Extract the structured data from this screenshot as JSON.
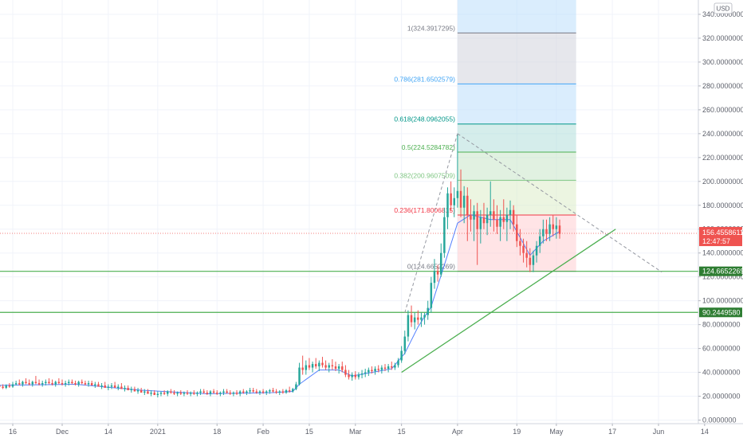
{
  "colors": {
    "up": "#26a69a",
    "down": "#ef5350",
    "grid": "#f0f3fa",
    "axis_text": "#5d606b",
    "ma_line": "#2962ff",
    "support_line": "#4caf50",
    "price_tag": "#ef5350",
    "level_tag": "#2e7d32"
  },
  "currency_badge": "USD",
  "price_tag": {
    "value": "156.4558611",
    "timer": "12:47:57"
  },
  "chart_data": {
    "type": "candlestick",
    "title": "",
    "xlabel": "",
    "ylabel": "",
    "ylim": [
      -3,
      352
    ],
    "y_ticks": [
      "0.0000000",
      "20.0000000",
      "40.0000000",
      "60.0000000",
      "80.0000000",
      "100.0000000",
      "120.0000000",
      "140.0000000",
      "160.0000000",
      "180.0000000",
      "200.0000000",
      "220.0000000",
      "240.0000000",
      "260.0000000",
      "280.0000000",
      "300.0000000",
      "320.0000000",
      "340.0000000"
    ],
    "x_ticks": [
      "16",
      "Dec",
      "14",
      "2021",
      "18",
      "Feb",
      "15",
      "Mar",
      "15",
      "Apr",
      "19",
      "May",
      "17",
      "Jun",
      "14"
    ],
    "x_tick_days": [
      -59,
      -44,
      -30,
      -15,
      3,
      17,
      31,
      45,
      59,
      76,
      94,
      106,
      123,
      137,
      151
    ],
    "fib_levels": [
      {
        "label": "1(324.3917295)",
        "value": 324.39,
        "color": "#787b86",
        "fill": "#d1d4dc"
      },
      {
        "label": "0.786(281.6502579)",
        "value": 281.65,
        "color": "#42a5f5",
        "fill": "#bbdefb"
      },
      {
        "label": "0.618(248.0962055)",
        "value": 248.1,
        "color": "#009688",
        "fill": "#b2dfdb"
      },
      {
        "label": "0.5(224.5284782)",
        "value": 224.53,
        "color": "#4caf50",
        "fill": "#c8e6c9"
      },
      {
        "label": "0.382(200.9607509)",
        "value": 200.96,
        "color": "#81c784",
        "fill": "#dcedc8"
      },
      {
        "label": "0.236(171.8006815)",
        "value": 171.8,
        "color": "#f23645",
        "fill": "#ffcdd2"
      },
      {
        "label": "0(124.6652269)",
        "value": 124.67,
        "color": "#787b86",
        "fill": ""
      }
    ],
    "fib_top_fill": {
      "to": 352,
      "fill": "#bbdefb"
    },
    "horizontal_levels": [
      {
        "label": "124.6652269",
        "value": 124.67
      },
      {
        "label": "90.2449580",
        "value": 90.24
      }
    ],
    "trendlines": [
      {
        "style": "solid",
        "x": [
          59,
          124
        ],
        "y": [
          40,
          160
        ]
      },
      {
        "style": "dashed",
        "x": [
          76,
          138
        ],
        "y": [
          240,
          124
        ]
      },
      {
        "style": "dashed",
        "x": [
          60,
          76
        ],
        "y": [
          90,
          240
        ]
      }
    ],
    "last_price": 156.46,
    "candles": {
      "fields": [
        "day",
        "open",
        "high",
        "low",
        "close"
      ],
      "rows": [
        [
          -65,
          31,
          33,
          29,
          30
        ],
        [
          -64,
          30,
          32,
          28,
          29
        ],
        [
          -63,
          29,
          31,
          27,
          28
        ],
        [
          -62,
          28,
          30,
          26,
          27
        ],
        [
          -61,
          27,
          30,
          26,
          29
        ],
        [
          -60,
          29,
          31,
          27,
          28
        ],
        [
          -59,
          28,
          32,
          27,
          30
        ],
        [
          -58,
          30,
          33,
          29,
          31
        ],
        [
          -57,
          31,
          34,
          29,
          30
        ],
        [
          -56,
          30,
          33,
          28,
          32
        ],
        [
          -55,
          32,
          35,
          30,
          31
        ],
        [
          -54,
          31,
          34,
          29,
          30
        ],
        [
          -53,
          30,
          33,
          28,
          32
        ],
        [
          -52,
          32,
          37,
          30,
          31
        ],
        [
          -51,
          31,
          34,
          29,
          30
        ],
        [
          -50,
          30,
          33,
          28,
          31
        ],
        [
          -49,
          31,
          34,
          29,
          32
        ],
        [
          -48,
          32,
          35,
          30,
          31
        ],
        [
          -47,
          31,
          34,
          29,
          30
        ],
        [
          -46,
          30,
          33,
          28,
          32
        ],
        [
          -45,
          32,
          35,
          30,
          31
        ],
        [
          -44,
          31,
          34,
          29,
          30
        ],
        [
          -43,
          30,
          33,
          28,
          31
        ],
        [
          -42,
          31,
          34,
          29,
          32
        ],
        [
          -41,
          32,
          34,
          30,
          31
        ],
        [
          -40,
          31,
          33,
          29,
          30
        ],
        [
          -39,
          30,
          33,
          28,
          32
        ],
        [
          -38,
          32,
          34,
          30,
          31
        ],
        [
          -37,
          31,
          33,
          29,
          30
        ],
        [
          -36,
          30,
          33,
          28,
          31
        ],
        [
          -35,
          31,
          33,
          29,
          29
        ],
        [
          -34,
          29,
          32,
          27,
          30
        ],
        [
          -33,
          30,
          32,
          28,
          28
        ],
        [
          -32,
          28,
          31,
          26,
          29
        ],
        [
          -31,
          29,
          32,
          27,
          27
        ],
        [
          -30,
          27,
          30,
          25,
          28
        ],
        [
          -29,
          28,
          31,
          26,
          29
        ],
        [
          -28,
          29,
          32,
          27,
          27
        ],
        [
          -27,
          27,
          30,
          25,
          28
        ],
        [
          -26,
          28,
          31,
          26,
          26
        ],
        [
          -25,
          26,
          29,
          24,
          27
        ],
        [
          -24,
          27,
          29,
          25,
          25
        ],
        [
          -23,
          25,
          28,
          23,
          26
        ],
        [
          -22,
          26,
          28,
          24,
          24
        ],
        [
          -21,
          24,
          27,
          22,
          25
        ],
        [
          -20,
          25,
          27,
          23,
          23
        ],
        [
          -19,
          23,
          26,
          21,
          24
        ],
        [
          -18,
          24,
          26,
          22,
          22
        ],
        [
          -17,
          22,
          25,
          20,
          23
        ],
        [
          -16,
          23,
          25,
          21,
          21
        ],
        [
          -15,
          21,
          24,
          19,
          22
        ],
        [
          -14,
          22,
          24,
          20,
          23
        ],
        [
          -13,
          23,
          25,
          21,
          22
        ],
        [
          -12,
          22,
          25,
          20,
          24
        ],
        [
          -11,
          24,
          26,
          22,
          23
        ],
        [
          -10,
          23,
          25,
          21,
          22
        ],
        [
          -9,
          22,
          24,
          20,
          23
        ],
        [
          -8,
          23,
          25,
          21,
          22
        ],
        [
          -7,
          22,
          24,
          20,
          23
        ],
        [
          -6,
          23,
          25,
          21,
          22
        ],
        [
          -5,
          22,
          24,
          20,
          23
        ],
        [
          -4,
          23,
          25,
          21,
          22
        ],
        [
          -3,
          22,
          24,
          20,
          23
        ],
        [
          -2,
          23,
          26,
          21,
          24
        ],
        [
          -1,
          24,
          26,
          22,
          23
        ],
        [
          0,
          23,
          25,
          21,
          22
        ],
        [
          1,
          22,
          25,
          20,
          24
        ],
        [
          2,
          24,
          26,
          22,
          23
        ],
        [
          3,
          23,
          25,
          21,
          22
        ],
        [
          4,
          22,
          24,
          20,
          23
        ],
        [
          5,
          23,
          26,
          21,
          24
        ],
        [
          6,
          24,
          26,
          22,
          23
        ],
        [
          7,
          23,
          25,
          21,
          22
        ],
        [
          8,
          22,
          24,
          20,
          23
        ],
        [
          9,
          23,
          25,
          21,
          22
        ],
        [
          10,
          22,
          25,
          20,
          24
        ],
        [
          11,
          24,
          26,
          22,
          23
        ],
        [
          12,
          23,
          25,
          21,
          24
        ],
        [
          13,
          24,
          27,
          22,
          25
        ],
        [
          14,
          25,
          27,
          23,
          24
        ],
        [
          15,
          24,
          26,
          22,
          23
        ],
        [
          16,
          23,
          25,
          21,
          24
        ],
        [
          17,
          24,
          26,
          22,
          23
        ],
        [
          18,
          23,
          25,
          21,
          24
        ],
        [
          19,
          24,
          26,
          22,
          25
        ],
        [
          20,
          25,
          27,
          23,
          24
        ],
        [
          21,
          24,
          26,
          22,
          23
        ],
        [
          22,
          23,
          25,
          21,
          24
        ],
        [
          23,
          24,
          26,
          22,
          23
        ],
        [
          24,
          23,
          26,
          22,
          25
        ],
        [
          25,
          25,
          28,
          23,
          24
        ],
        [
          26,
          24,
          27,
          23,
          26
        ],
        [
          27,
          26,
          32,
          25,
          30
        ],
        [
          28,
          30,
          48,
          29,
          44
        ],
        [
          29,
          44,
          54,
          38,
          42
        ],
        [
          30,
          42,
          50,
          38,
          46
        ],
        [
          31,
          46,
          52,
          42,
          44
        ],
        [
          32,
          44,
          49,
          40,
          47
        ],
        [
          33,
          47,
          52,
          43,
          45
        ],
        [
          34,
          45,
          50,
          41,
          48
        ],
        [
          35,
          48,
          53,
          44,
          46
        ],
        [
          36,
          46,
          50,
          42,
          44
        ],
        [
          37,
          44,
          48,
          40,
          46
        ],
        [
          38,
          46,
          51,
          42,
          45
        ],
        [
          39,
          45,
          49,
          41,
          43
        ],
        [
          40,
          43,
          47,
          39,
          45
        ],
        [
          41,
          45,
          49,
          40,
          42
        ],
        [
          42,
          42,
          46,
          36,
          38
        ],
        [
          43,
          38,
          42,
          34,
          36
        ],
        [
          44,
          36,
          40,
          33,
          38
        ],
        [
          45,
          38,
          41,
          34,
          36
        ],
        [
          46,
          36,
          40,
          34,
          38
        ],
        [
          47,
          38,
          42,
          35,
          39
        ],
        [
          48,
          39,
          43,
          36,
          40
        ],
        [
          49,
          40,
          44,
          37,
          42
        ],
        [
          50,
          42,
          45,
          39,
          41
        ],
        [
          51,
          41,
          45,
          38,
          43
        ],
        [
          52,
          43,
          46,
          40,
          42
        ],
        [
          53,
          42,
          46,
          39,
          44
        ],
        [
          54,
          44,
          47,
          41,
          43
        ],
        [
          55,
          43,
          47,
          40,
          45
        ],
        [
          56,
          45,
          49,
          42,
          44
        ],
        [
          57,
          44,
          48,
          42,
          46
        ],
        [
          58,
          46,
          52,
          44,
          50
        ],
        [
          59,
          50,
          62,
          48,
          58
        ],
        [
          60,
          58,
          75,
          55,
          70
        ],
        [
          61,
          70,
          92,
          66,
          88
        ],
        [
          62,
          88,
          96,
          78,
          82
        ],
        [
          63,
          82,
          90,
          76,
          86
        ],
        [
          64,
          86,
          92,
          80,
          84
        ],
        [
          65,
          84,
          90,
          78,
          86
        ],
        [
          66,
          86,
          90,
          80,
          88
        ],
        [
          67,
          88,
          100,
          84,
          94
        ],
        [
          68,
          94,
          120,
          90,
          115
        ],
        [
          69,
          115,
          135,
          110,
          125
        ],
        [
          70,
          125,
          130,
          116,
          122
        ],
        [
          71,
          122,
          148,
          120,
          140
        ],
        [
          72,
          140,
          178,
          136,
          170
        ],
        [
          73,
          170,
          195,
          160,
          190
        ],
        [
          74,
          190,
          200,
          175,
          180
        ],
        [
          75,
          180,
          195,
          170,
          186
        ],
        [
          76,
          186,
          240,
          178,
          192
        ],
        [
          77,
          192,
          210,
          170,
          178
        ],
        [
          78,
          178,
          196,
          165,
          188
        ],
        [
          79,
          188,
          195,
          150,
          172
        ],
        [
          80,
          172,
          185,
          158,
          168
        ],
        [
          81,
          168,
          180,
          150,
          175
        ],
        [
          82,
          175,
          182,
          130,
          160
        ],
        [
          83,
          160,
          176,
          148,
          170
        ],
        [
          84,
          170,
          182,
          160,
          165
        ],
        [
          85,
          165,
          178,
          155,
          172
        ],
        [
          86,
          172,
          200,
          162,
          175
        ],
        [
          87,
          175,
          185,
          158,
          168
        ],
        [
          88,
          168,
          180,
          156,
          162
        ],
        [
          89,
          162,
          176,
          150,
          170
        ],
        [
          90,
          170,
          185,
          160,
          166
        ],
        [
          91,
          166,
          178,
          150,
          172
        ],
        [
          92,
          172,
          184,
          160,
          176
        ],
        [
          93,
          176,
          180,
          158,
          164
        ],
        [
          94,
          164,
          172,
          145,
          150
        ],
        [
          95,
          150,
          160,
          138,
          146
        ],
        [
          96,
          146,
          152,
          132,
          140
        ],
        [
          97,
          140,
          150,
          128,
          136
        ],
        [
          98,
          136,
          144,
          124,
          130
        ],
        [
          99,
          130,
          142,
          124,
          138
        ],
        [
          100,
          138,
          150,
          132,
          146
        ],
        [
          101,
          146,
          160,
          140,
          154
        ],
        [
          102,
          154,
          168,
          148,
          160
        ],
        [
          103,
          160,
          168,
          150,
          156
        ],
        [
          104,
          156,
          170,
          150,
          164
        ],
        [
          105,
          164,
          172,
          154,
          160
        ],
        [
          106,
          160,
          170,
          152,
          163
        ],
        [
          107,
          163,
          168,
          152,
          156
        ]
      ]
    },
    "moving_average": {
      "days": [
        -65,
        -40,
        -20,
        0,
        20,
        26,
        28,
        34,
        40,
        44,
        50,
        56,
        60,
        64,
        68,
        72,
        76,
        80,
        86,
        92,
        98,
        102,
        107
      ],
      "values": [
        29,
        30,
        25,
        22,
        23,
        24,
        30,
        42,
        42,
        37,
        40,
        43,
        56,
        78,
        95,
        130,
        165,
        172,
        168,
        168,
        138,
        150,
        158
      ]
    }
  }
}
